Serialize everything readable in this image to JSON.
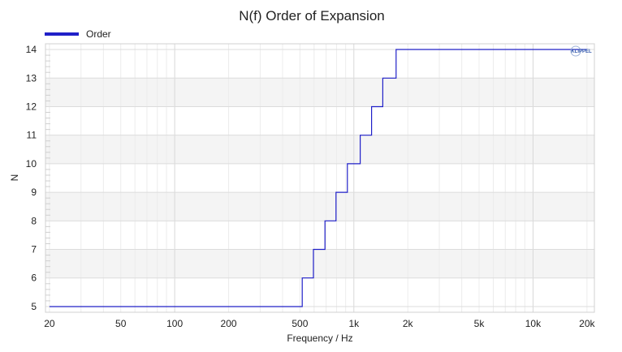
{
  "chart_data": {
    "type": "line",
    "title": "N(f) Order of Expansion",
    "xlabel": "Frequency / Hz",
    "ylabel": "N",
    "x_scale": "log",
    "xlim": [
      19,
      22000
    ],
    "ylim": [
      4.8,
      14.2
    ],
    "x_ticks": [
      20,
      50,
      100,
      200,
      500,
      1000,
      2000,
      5000,
      10000,
      20000
    ],
    "x_tick_labels": [
      "20",
      "50",
      "100",
      "200",
      "500",
      "1k",
      "2k",
      "5k",
      "10k",
      "20k"
    ],
    "y_ticks": [
      5,
      6,
      7,
      8,
      9,
      10,
      11,
      12,
      13,
      14
    ],
    "y_tick_labels": [
      "5",
      "6",
      "7",
      "8",
      "9",
      "10",
      "11",
      "12",
      "13",
      "14"
    ],
    "grid": true,
    "legend_position": "top-left",
    "watermark": "KLIPPEL",
    "series": [
      {
        "name": "Order",
        "color": "#2020c8",
        "step": true,
        "points": [
          [
            20,
            5
          ],
          [
            515,
            5
          ],
          [
            515,
            6
          ],
          [
            595,
            6
          ],
          [
            595,
            7
          ],
          [
            690,
            7
          ],
          [
            690,
            8
          ],
          [
            795,
            8
          ],
          [
            795,
            9
          ],
          [
            920,
            9
          ],
          [
            920,
            10
          ],
          [
            1085,
            10
          ],
          [
            1085,
            11
          ],
          [
            1255,
            11
          ],
          [
            1255,
            12
          ],
          [
            1450,
            12
          ],
          [
            1450,
            13
          ],
          [
            1720,
            13
          ],
          [
            1720,
            14
          ],
          [
            20000,
            14
          ]
        ]
      }
    ]
  }
}
